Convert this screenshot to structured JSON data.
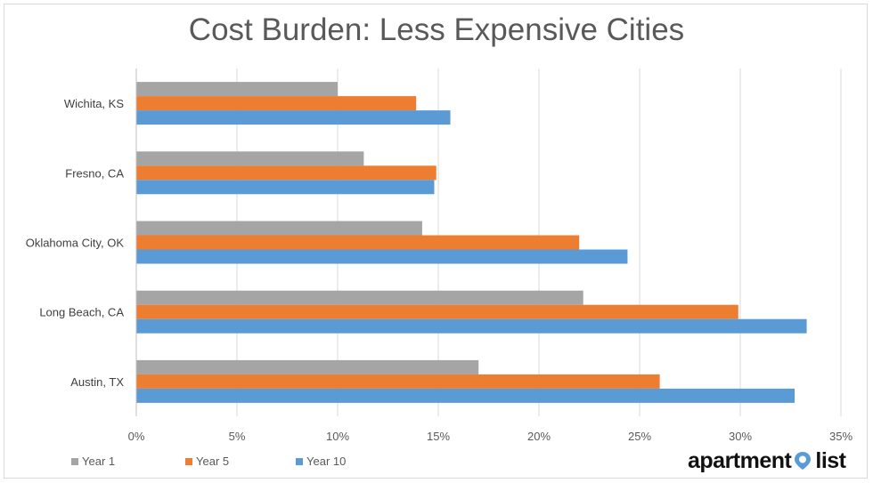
{
  "chart_data": {
    "type": "bar",
    "orientation": "horizontal",
    "title": "Cost Burden: Less Expensive Cities",
    "categories": [
      "Wichita, KS",
      "Fresno, CA",
      "Oklahoma City, OK",
      "Long Beach, CA",
      "Austin, TX"
    ],
    "series": [
      {
        "name": "Year 1",
        "color": "#a5a5a5",
        "values": [
          10.0,
          11.3,
          14.2,
          22.2,
          17.0
        ]
      },
      {
        "name": "Year 5",
        "color": "#ed7d31",
        "values": [
          13.9,
          14.9,
          22.0,
          29.9,
          26.0
        ]
      },
      {
        "name": "Year 10",
        "color": "#5b9bd5",
        "values": [
          15.6,
          14.8,
          24.4,
          33.3,
          32.7
        ]
      }
    ],
    "xlim": [
      0,
      35
    ],
    "xticks": [
      "0%",
      "5%",
      "10%",
      "15%",
      "20%",
      "25%",
      "30%",
      "35%"
    ],
    "grid": "vertical",
    "legend_position": "bottom-left"
  },
  "branding": {
    "logo_word1": "apartment",
    "logo_word2": "list",
    "logo_color": "#5b9bd5"
  }
}
